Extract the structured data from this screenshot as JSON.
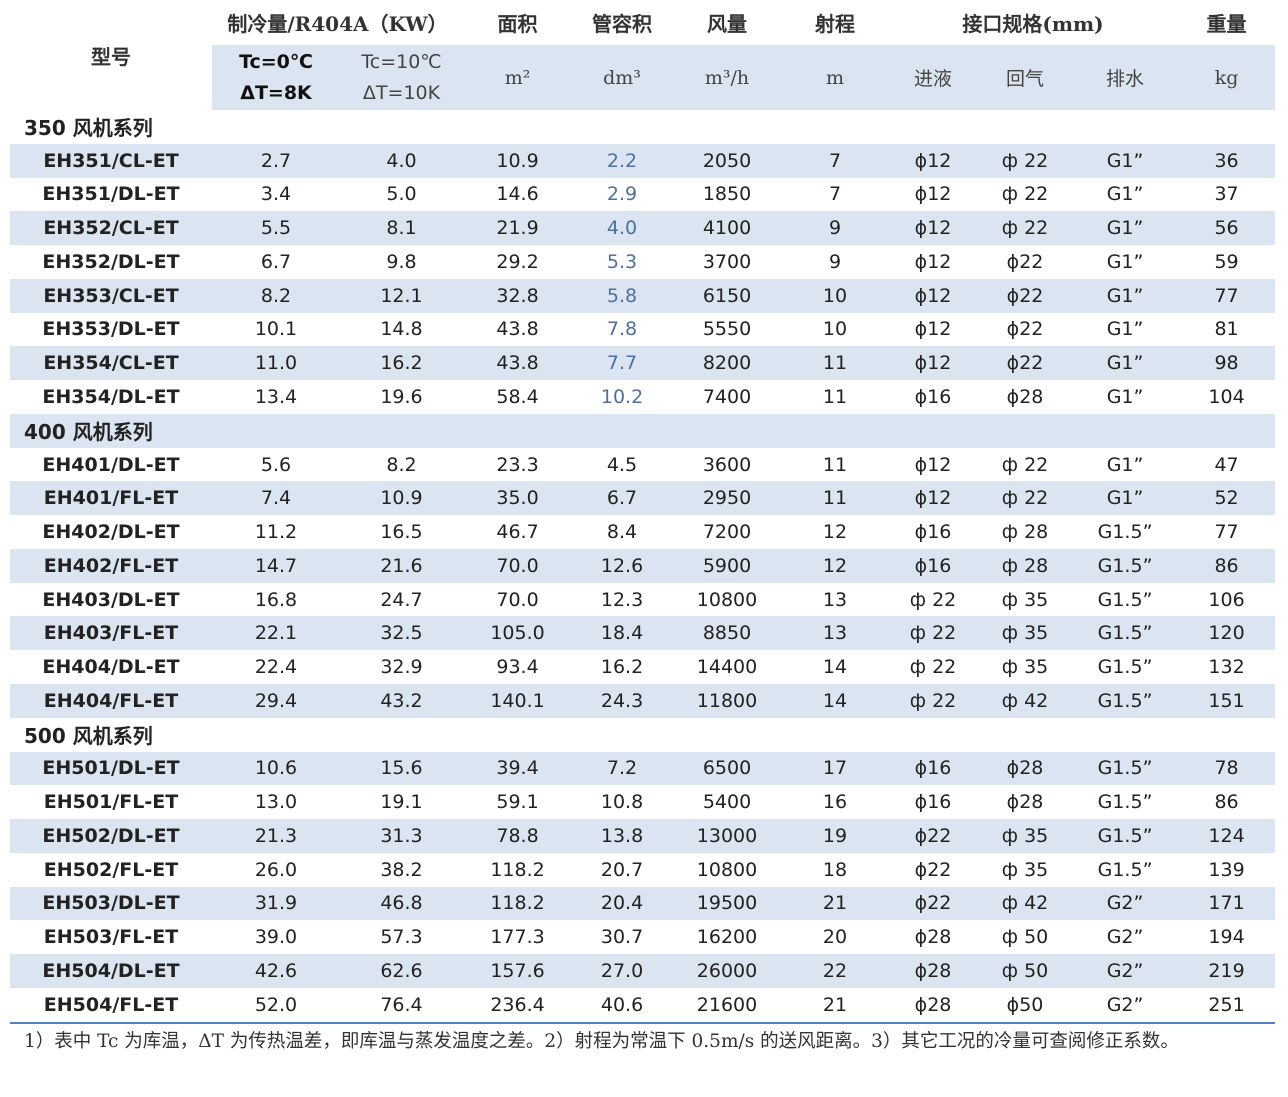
{
  "table": {
    "header": {
      "row1": [
        "型号",
        "制冷量/R404A（KW）",
        "面积",
        "管容积",
        "风量",
        "射程",
        "接口规格(mm)",
        "重量"
      ],
      "cooling": [
        [
          "Tc=0℃",
          "ΔT=8K"
        ],
        [
          "Tc=10℃",
          "ΔT=10K"
        ]
      ],
      "units": [
        "m²",
        "dm³",
        "m³/h",
        "m",
        "进液",
        "回气",
        "排水",
        "kg"
      ]
    },
    "sections": [
      {
        "title": "350 风机系列",
        "rows": [
          [
            "EH351/CL-ET",
            "2.7",
            "4.0",
            "10.9",
            "2.2",
            "2050",
            "7",
            "ϕ12",
            "ф 22",
            "G1”",
            "36"
          ],
          [
            "EH351/DL-ET",
            "3.4",
            "5.0",
            "14.6",
            "2.9",
            "1850",
            "7",
            "ϕ12",
            "ф 22",
            "G1”",
            "37"
          ],
          [
            "EH352/CL-ET",
            "5.5",
            "8.1",
            "21.9",
            "4.0",
            "4100",
            "9",
            "ϕ12",
            "ф 22",
            "G1”",
            "56"
          ],
          [
            "EH352/DL-ET",
            "6.7",
            "9.8",
            "29.2",
            "5.3",
            "3700",
            "9",
            "ϕ12",
            "ϕ22",
            "G1”",
            "59"
          ],
          [
            "EH353/CL-ET",
            "8.2",
            "12.1",
            "32.8",
            "5.8",
            "6150",
            "10",
            "ϕ12",
            "ϕ22",
            "G1”",
            "77"
          ],
          [
            "EH353/DL-ET",
            "10.1",
            "14.8",
            "43.8",
            "7.8",
            "5550",
            "10",
            "ϕ12",
            "ϕ22",
            "G1”",
            "81"
          ],
          [
            "EH354/CL-ET",
            "11.0",
            "16.2",
            "43.8",
            "7.7",
            "8200",
            "11",
            "ϕ12",
            "ϕ22",
            "G1”",
            "98"
          ],
          [
            "EH354/DL-ET",
            "13.4",
            "19.6",
            "58.4",
            "10.2",
            "7400",
            "11",
            "ϕ16",
            "ϕ28",
            "G1”",
            "104"
          ]
        ]
      },
      {
        "title": "400 风机系列",
        "rows": [
          [
            "EH401/DL-ET",
            "5.6",
            "8.2",
            "23.3",
            "4.5",
            "3600",
            "11",
            "ϕ12",
            "ф 22",
            "G1”",
            "47"
          ],
          [
            "EH401/FL-ET",
            "7.4",
            "10.9",
            "35.0",
            "6.7",
            "2950",
            "11",
            "ϕ12",
            "ф 22",
            "G1”",
            "52"
          ],
          [
            "EH402/DL-ET",
            "11.2",
            "16.5",
            "46.7",
            "8.4",
            "7200",
            "12",
            "ϕ16",
            "ф 28",
            "G1.5”",
            "77"
          ],
          [
            "EH402/FL-ET",
            "14.7",
            "21.6",
            "70.0",
            "12.6",
            "5900",
            "12",
            "ϕ16",
            "ф 28",
            "G1.5”",
            "86"
          ],
          [
            "EH403/DL-ET",
            "16.8",
            "24.7",
            "70.0",
            "12.3",
            "10800",
            "13",
            "ф 22",
            "ф 35",
            "G1.5”",
            "106"
          ],
          [
            "EH403/FL-ET",
            "22.1",
            "32.5",
            "105.0",
            "18.4",
            "8850",
            "13",
            "ф 22",
            "ф 35",
            "G1.5”",
            "120"
          ],
          [
            "EH404/DL-ET",
            "22.4",
            "32.9",
            "93.4",
            "16.2",
            "14400",
            "14",
            "ф 22",
            "ф 35",
            "G1.5”",
            "132"
          ],
          [
            "EH404/FL-ET",
            "29.4",
            "43.2",
            "140.1",
            "24.3",
            "11800",
            "14",
            "ф 22",
            "ф 42",
            "G1.5”",
            "151"
          ]
        ]
      },
      {
        "title": "500 风机系列",
        "rows": [
          [
            "EH501/DL-ET",
            "10.6",
            "15.6",
            "39.4",
            "7.2",
            "6500",
            "17",
            "ϕ16",
            "ϕ28",
            "G1.5”",
            "78"
          ],
          [
            "EH501/FL-ET",
            "13.0",
            "19.1",
            "59.1",
            "10.8",
            "5400",
            "16",
            "ϕ16",
            "ϕ28",
            "G1.5”",
            "86"
          ],
          [
            "EH502/DL-ET",
            "21.3",
            "31.3",
            "78.8",
            "13.8",
            "13000",
            "19",
            "ϕ22",
            "ф 35",
            "G1.5”",
            "124"
          ],
          [
            "EH502/FL-ET",
            "26.0",
            "38.2",
            "118.2",
            "20.7",
            "10800",
            "18",
            "ϕ22",
            "ф 35",
            "G1.5”",
            "139"
          ],
          [
            "EH503/DL-ET",
            "31.9",
            "46.8",
            "118.2",
            "20.4",
            "19500",
            "21",
            "ϕ22",
            "ф 42",
            "G2”",
            "171"
          ],
          [
            "EH503/FL-ET",
            "39.0",
            "57.3",
            "177.3",
            "30.7",
            "16200",
            "20",
            "ϕ28",
            "ф 50",
            "G2”",
            "194"
          ],
          [
            "EH504/DL-ET",
            "42.6",
            "62.6",
            "157.6",
            "27.0",
            "26000",
            "22",
            "ϕ28",
            "ф 50",
            "G2”",
            "219"
          ],
          [
            "EH504/FL-ET",
            "52.0",
            "76.4",
            "236.4",
            "40.6",
            "21600",
            "21",
            "ϕ28",
            "ϕ50",
            "G2”",
            "251"
          ]
        ]
      }
    ],
    "footnote": "1）表中 Tc 为库温，ΔT 为传热温差，即库温与蒸发温度之差。2）射程为常温下 0.5m/s 的送风距离。3）其它工况的冷量可查阅修正系数。"
  }
}
